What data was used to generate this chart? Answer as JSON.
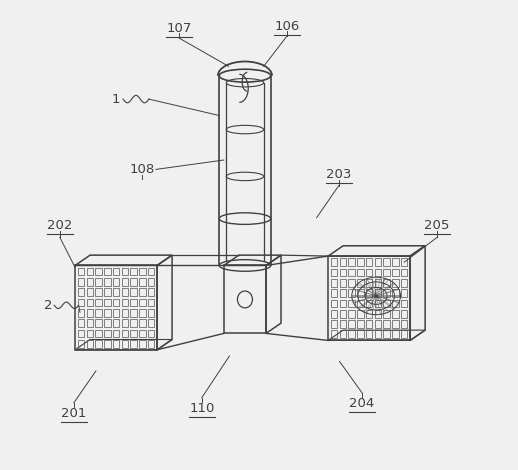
{
  "bg_color": "#f0f0f0",
  "line_color": "#404040",
  "fig_width": 5.18,
  "fig_height": 4.7,
  "dpi": 100,
  "lw": 1.0
}
